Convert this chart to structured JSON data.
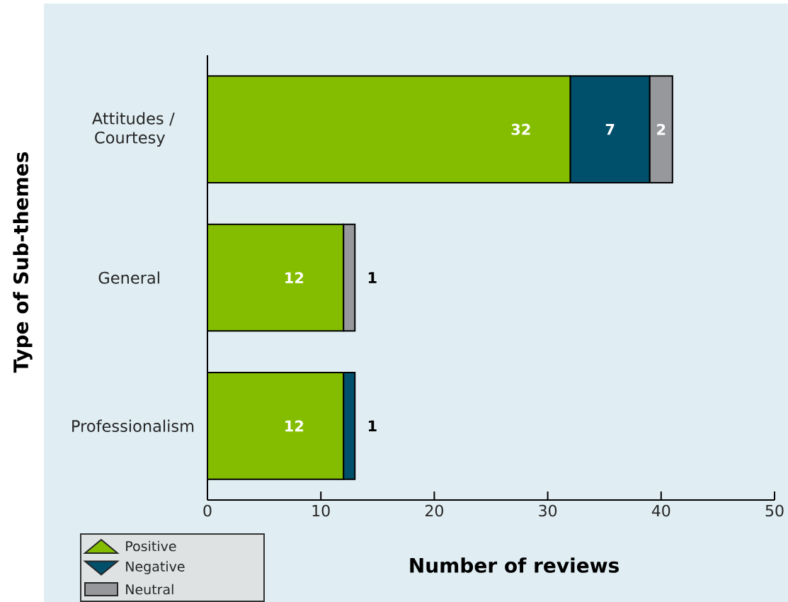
{
  "chart_data": {
    "type": "bar",
    "orientation": "horizontal",
    "stacked": true,
    "xlabel": "Number of reviews",
    "ylabel": "Type of Sub-themes",
    "categories": [
      "Attitudes / Courtesy",
      "General",
      "Professionalism"
    ],
    "series": [
      {
        "name": "Positive",
        "color": "#84bd00",
        "values": [
          32,
          12,
          12
        ]
      },
      {
        "name": "Negative",
        "color": "#004f6b",
        "values": [
          7,
          null,
          1
        ]
      },
      {
        "name": "Neutral",
        "color": "#97989c",
        "values": [
          2,
          1,
          null
        ]
      }
    ],
    "xlim": [
      0,
      50
    ],
    "xticks": [
      0,
      10,
      20,
      30,
      40,
      50
    ],
    "data_labels": true,
    "legend": "bottom left"
  }
}
